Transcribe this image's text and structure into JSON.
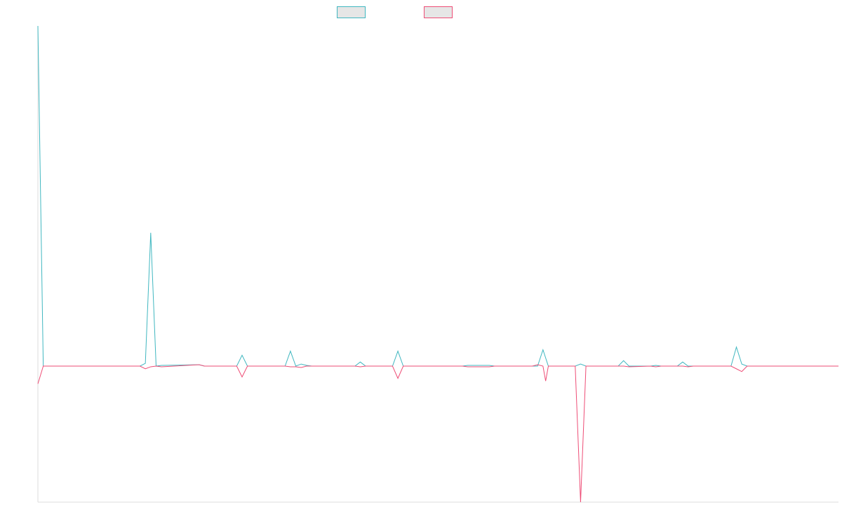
{
  "chart_data": {
    "type": "line",
    "title": "",
    "xlabel": "",
    "ylabel": "",
    "grid": false,
    "legend": "top-center",
    "ylim": [
      -1.0,
      2.5
    ],
    "x_count": 150,
    "series": [
      {
        "color": "#40b7c0",
        "points": [
          [
            0,
            2.5
          ],
          [
            1,
            0
          ],
          [
            19,
            0
          ],
          [
            20,
            0.02
          ],
          [
            21,
            0.98
          ],
          [
            22,
            0
          ],
          [
            23,
            0.005
          ],
          [
            30,
            0.01
          ],
          [
            31,
            0
          ],
          [
            37,
            0
          ],
          [
            38,
            0.08
          ],
          [
            39,
            0
          ],
          [
            46,
            0
          ],
          [
            47,
            0.11
          ],
          [
            48,
            0
          ],
          [
            49,
            0.015
          ],
          [
            50,
            0.005
          ],
          [
            51,
            0
          ],
          [
            59,
            0
          ],
          [
            60,
            0.03
          ],
          [
            61,
            0
          ],
          [
            66,
            0
          ],
          [
            67,
            0.11
          ],
          [
            68,
            0
          ],
          [
            79,
            0
          ],
          [
            80,
            0.005
          ],
          [
            84,
            0.005
          ],
          [
            85,
            0
          ],
          [
            93,
            0
          ],
          [
            94,
            0.12
          ],
          [
            95,
            0
          ],
          [
            100,
            0
          ],
          [
            101,
            0.015
          ],
          [
            102,
            0
          ],
          [
            108,
            0
          ],
          [
            109,
            0.04
          ],
          [
            110,
            0
          ],
          [
            114,
            0
          ],
          [
            115,
            0.005
          ],
          [
            116,
            0
          ],
          [
            119,
            0
          ],
          [
            120,
            0.03
          ],
          [
            121,
            0
          ],
          [
            129,
            0
          ],
          [
            130,
            0.14
          ],
          [
            131,
            0.015
          ],
          [
            132,
            0
          ],
          [
            149,
            0
          ]
        ]
      },
      {
        "color": "#ee4d76",
        "points": [
          [
            0,
            -0.13
          ],
          [
            1,
            0
          ],
          [
            19,
            0
          ],
          [
            20,
            -0.02
          ],
          [
            21,
            -0.005
          ],
          [
            22,
            0
          ],
          [
            23,
            -0.005
          ],
          [
            30,
            0.01
          ],
          [
            31,
            0
          ],
          [
            37,
            0
          ],
          [
            38,
            -0.08
          ],
          [
            39,
            0
          ],
          [
            46,
            0
          ],
          [
            47,
            -0.005
          ],
          [
            48,
            -0.005
          ],
          [
            49,
            -0.01
          ],
          [
            50,
            0
          ],
          [
            59,
            0
          ],
          [
            60,
            -0.005
          ],
          [
            61,
            0
          ],
          [
            66,
            0
          ],
          [
            67,
            -0.09
          ],
          [
            68,
            0
          ],
          [
            79,
            0
          ],
          [
            80,
            -0.005
          ],
          [
            84,
            -0.005
          ],
          [
            85,
            0
          ],
          [
            92,
            0
          ],
          [
            93,
            0.01
          ],
          [
            94,
            0
          ],
          [
            94.5,
            -0.11
          ],
          [
            95,
            0
          ],
          [
            100,
            0
          ],
          [
            101,
            -1.0
          ],
          [
            102,
            0
          ],
          [
            109,
            0
          ],
          [
            110,
            -0.005
          ],
          [
            114,
            0
          ],
          [
            115,
            -0.005
          ],
          [
            116,
            0
          ],
          [
            120,
            0
          ],
          [
            121,
            -0.005
          ],
          [
            122,
            0
          ],
          [
            129,
            0
          ],
          [
            130,
            -0.02
          ],
          [
            131,
            -0.04
          ],
          [
            132,
            0
          ],
          [
            149,
            0
          ]
        ]
      }
    ]
  }
}
